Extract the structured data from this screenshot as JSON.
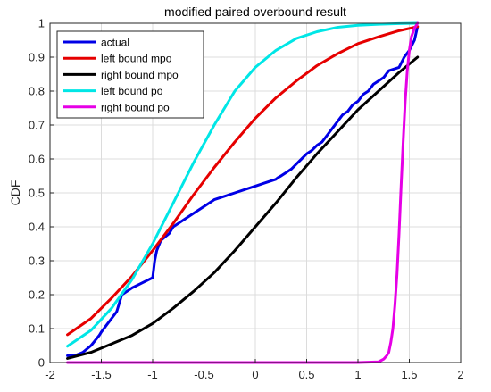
{
  "chart_data": {
    "type": "line",
    "title": "modified paired overbound result",
    "xlabel": "",
    "ylabel": "CDF",
    "xlim": [
      -2,
      2
    ],
    "ylim": [
      0,
      1
    ],
    "xticks": [
      -2,
      -1.5,
      -1,
      -0.5,
      0,
      0.5,
      1,
      1.5,
      2
    ],
    "xtick_labels": [
      "-2",
      "-1.5",
      "-1",
      "-0.5",
      "0",
      "0.5",
      "1",
      "1.5",
      "2"
    ],
    "yticks": [
      0,
      0.1,
      0.2,
      0.3,
      0.4,
      0.5,
      0.6,
      0.7,
      0.8,
      0.9,
      1
    ],
    "ytick_labels": [
      "0",
      "0.1",
      "0.2",
      "0.3",
      "0.4",
      "0.5",
      "0.6",
      "0.7",
      "0.8",
      "0.9",
      "1"
    ],
    "grid": true,
    "legend_position": "top-left",
    "series": [
      {
        "name": "actual",
        "color": "#0000e6",
        "x": [
          -1.83,
          -1.76,
          -1.68,
          -1.6,
          -1.52,
          -1.5,
          -1.45,
          -1.4,
          -1.35,
          -1.3,
          -1.25,
          -1.2,
          -1.1,
          -1.0,
          -0.98,
          -0.96,
          -0.92,
          -0.88,
          -0.84,
          -0.8,
          -0.7,
          -0.6,
          -0.5,
          -0.4,
          -0.3,
          -0.2,
          -0.1,
          0.0,
          0.1,
          0.2,
          0.22,
          0.25,
          0.3,
          0.35,
          0.4,
          0.45,
          0.5,
          0.55,
          0.6,
          0.65,
          0.7,
          0.75,
          0.8,
          0.85,
          0.9,
          0.95,
          1.0,
          1.05,
          1.1,
          1.15,
          1.2,
          1.25,
          1.3,
          1.35,
          1.4,
          1.45,
          1.5,
          1.55,
          1.58
        ],
        "y": [
          0.02,
          0.02,
          0.03,
          0.05,
          0.08,
          0.09,
          0.11,
          0.13,
          0.15,
          0.2,
          0.21,
          0.22,
          0.235,
          0.25,
          0.3,
          0.33,
          0.36,
          0.37,
          0.38,
          0.4,
          0.42,
          0.44,
          0.46,
          0.48,
          0.49,
          0.5,
          0.51,
          0.52,
          0.53,
          0.54,
          0.545,
          0.55,
          0.56,
          0.57,
          0.585,
          0.6,
          0.615,
          0.625,
          0.64,
          0.65,
          0.67,
          0.69,
          0.71,
          0.73,
          0.74,
          0.76,
          0.77,
          0.79,
          0.8,
          0.82,
          0.83,
          0.84,
          0.86,
          0.865,
          0.87,
          0.9,
          0.92,
          0.95,
          0.99
        ]
      },
      {
        "name": "left bound mpo",
        "color": "#e60000",
        "x": [
          -1.83,
          -1.6,
          -1.4,
          -1.2,
          -1.0,
          -0.8,
          -0.6,
          -0.4,
          -0.2,
          0.0,
          0.2,
          0.4,
          0.6,
          0.8,
          1.0,
          1.2,
          1.4,
          1.58
        ],
        "y": [
          0.082,
          0.13,
          0.19,
          0.255,
          0.33,
          0.41,
          0.495,
          0.575,
          0.65,
          0.72,
          0.78,
          0.83,
          0.875,
          0.91,
          0.94,
          0.96,
          0.978,
          0.99
        ]
      },
      {
        "name": "right bound mpo",
        "color": "#000000",
        "x": [
          -1.83,
          -1.6,
          -1.4,
          -1.2,
          -1.0,
          -0.8,
          -0.6,
          -0.4,
          -0.2,
          0.0,
          0.2,
          0.4,
          0.6,
          0.8,
          1.0,
          1.2,
          1.4,
          1.58
        ],
        "y": [
          0.012,
          0.03,
          0.055,
          0.08,
          0.115,
          0.16,
          0.21,
          0.265,
          0.33,
          0.4,
          0.47,
          0.545,
          0.615,
          0.68,
          0.745,
          0.8,
          0.855,
          0.9
        ]
      },
      {
        "name": "left bound po",
        "color": "#00e6e6",
        "x": [
          -1.83,
          -1.6,
          -1.4,
          -1.2,
          -1.0,
          -0.8,
          -0.6,
          -0.4,
          -0.2,
          0.0,
          0.2,
          0.4,
          0.6,
          0.8,
          1.0,
          1.2,
          1.4,
          1.58
        ],
        "y": [
          0.048,
          0.095,
          0.16,
          0.245,
          0.35,
          0.47,
          0.59,
          0.7,
          0.8,
          0.87,
          0.92,
          0.955,
          0.975,
          0.988,
          0.994,
          0.997,
          0.999,
          1.0
        ]
      },
      {
        "name": "right bound po",
        "color": "#e600e6",
        "x": [
          -1.83,
          0.0,
          1.0,
          1.2,
          1.25,
          1.28,
          1.3,
          1.32,
          1.34,
          1.36,
          1.38,
          1.4,
          1.42,
          1.44,
          1.46,
          1.48,
          1.5,
          1.52,
          1.55,
          1.58
        ],
        "y": [
          0.0,
          0.0,
          0.0,
          0.002,
          0.01,
          0.02,
          0.03,
          0.06,
          0.1,
          0.17,
          0.26,
          0.38,
          0.52,
          0.65,
          0.77,
          0.86,
          0.92,
          0.96,
          0.985,
          1.0
        ]
      }
    ]
  }
}
